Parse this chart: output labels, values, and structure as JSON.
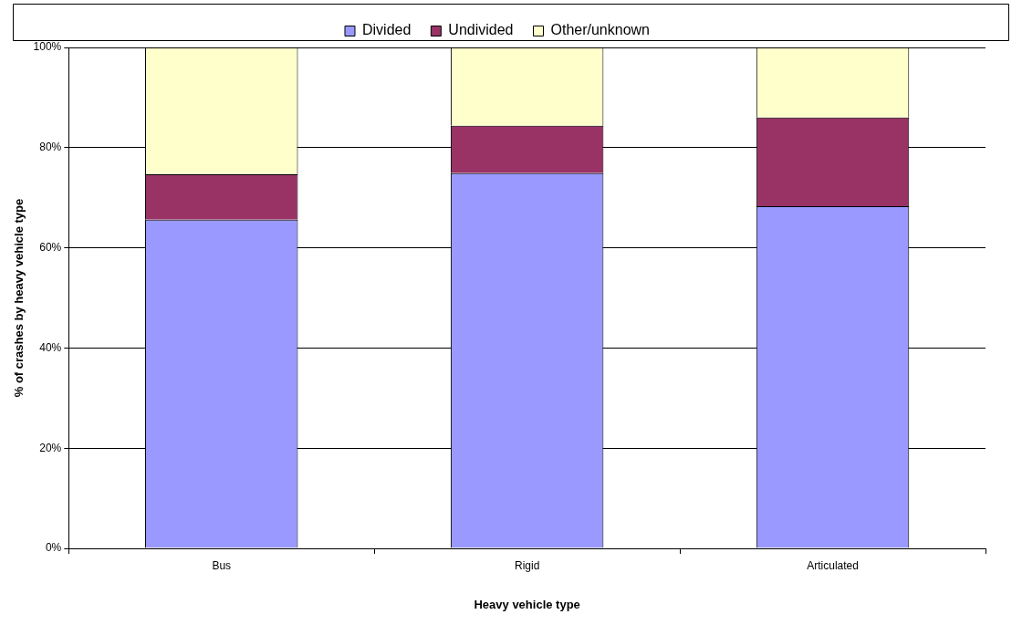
{
  "chart_data": {
    "type": "bar",
    "stacked": true,
    "xlabel": "Heavy vehicle type",
    "ylabel": "% of crashes by heavy vehicle type",
    "categories": [
      "Bus",
      "Rigid",
      "Articulated"
    ],
    "series": [
      {
        "name": "Divided",
        "color": "#9999ff",
        "values": [
          65.6,
          74.9,
          68.3
        ]
      },
      {
        "name": "Undivided",
        "color": "#993366",
        "values": [
          9.1,
          9.5,
          17.7
        ]
      },
      {
        "name": "Other/unknown",
        "color": "#ffffcc",
        "values": [
          25.3,
          15.6,
          14.0
        ]
      }
    ],
    "ylim": [
      0,
      100
    ],
    "yticks": [
      {
        "value": 0,
        "label": "0%"
      },
      {
        "value": 20,
        "label": "20%"
      },
      {
        "value": 40,
        "label": "40%"
      },
      {
        "value": 60,
        "label": "60%"
      },
      {
        "value": 80,
        "label": "80%"
      },
      {
        "value": 100,
        "label": "100%"
      }
    ],
    "grid": "y",
    "legend": "top"
  }
}
